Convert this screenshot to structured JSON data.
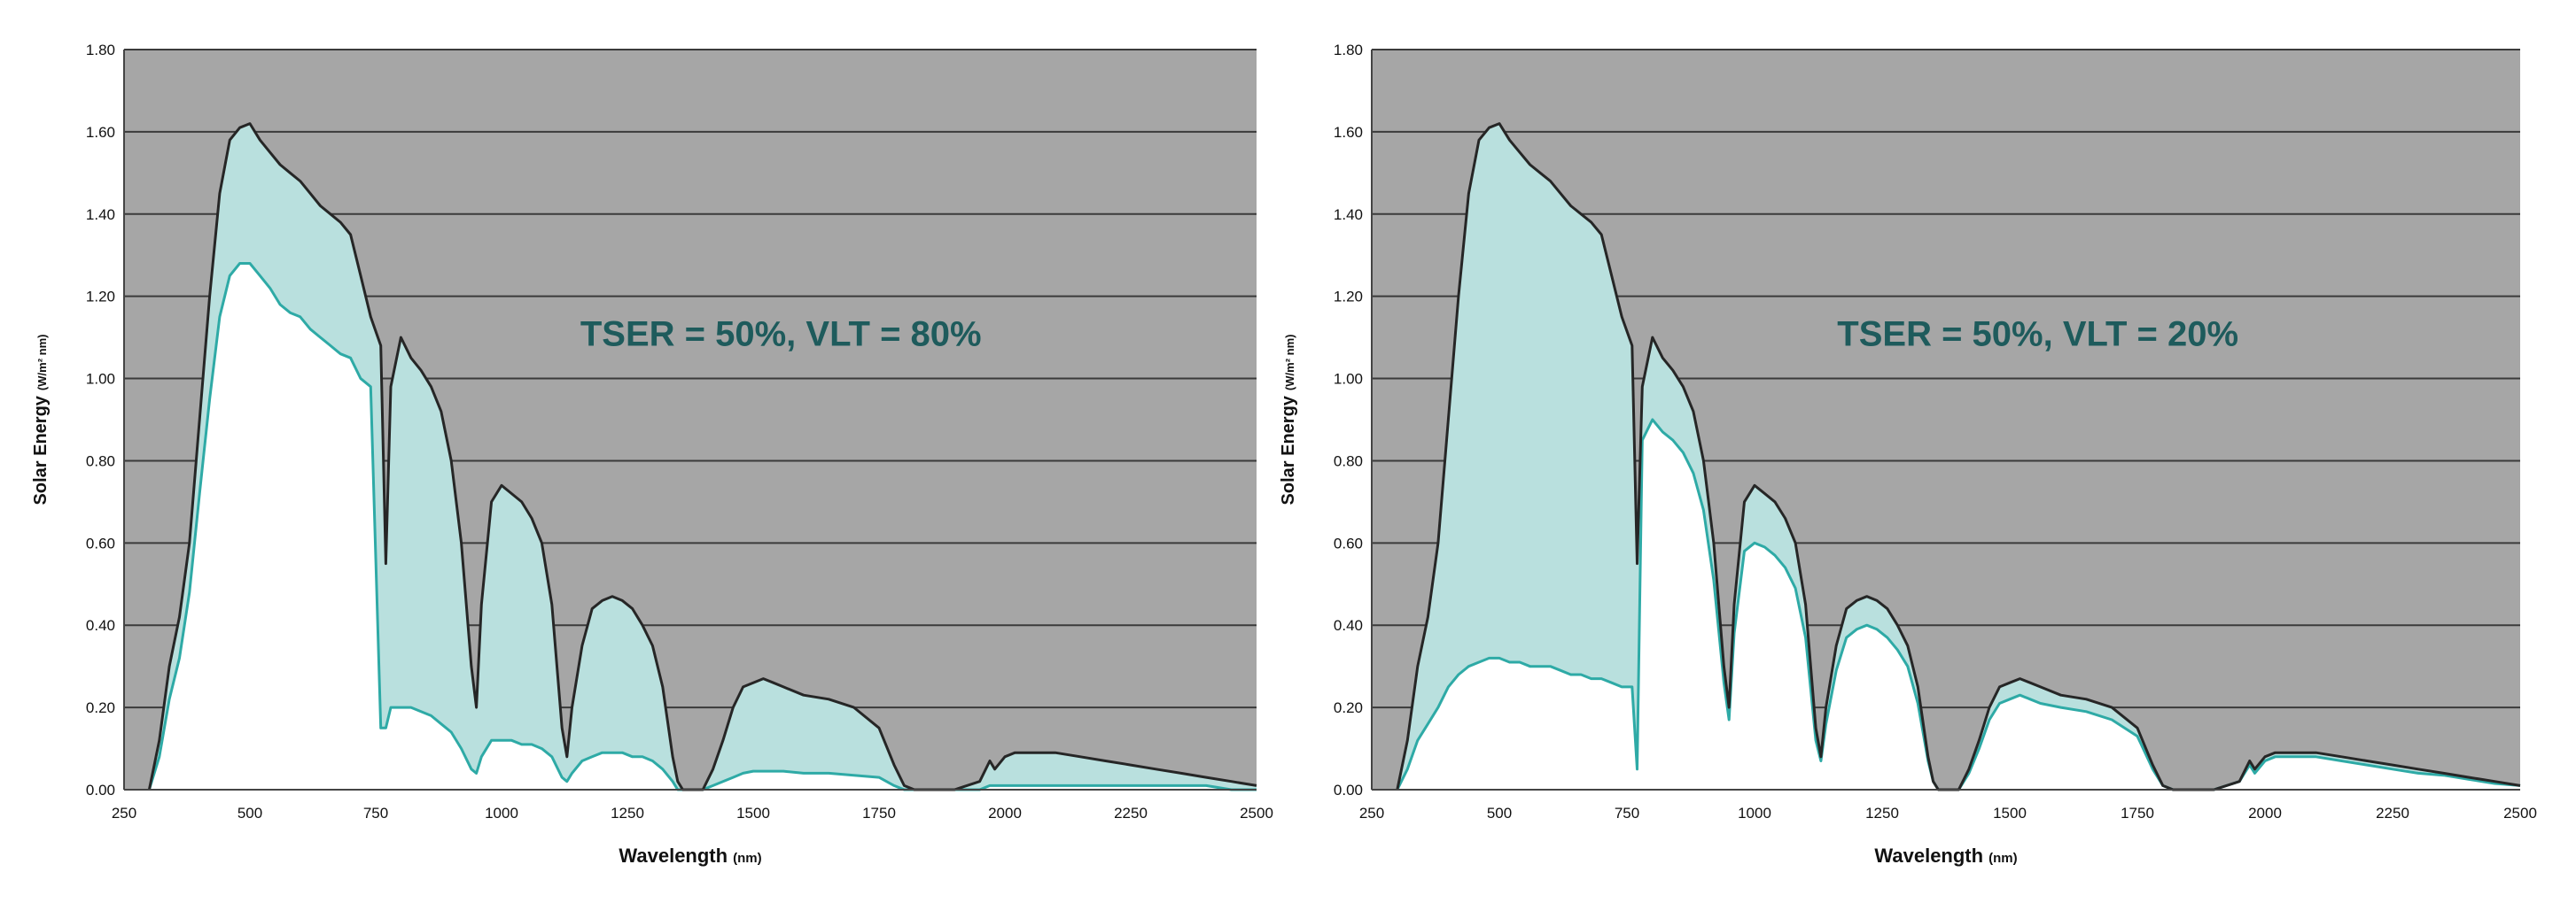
{
  "chart_data": [
    {
      "type": "area",
      "annotation": "TSER = 50%, VLT = 80%",
      "xlabel": "Wavelength",
      "xlabel_unit": "(nm)",
      "ylabel": "Solar Energy",
      "ylabel_unit": "(W/m² nm)",
      "xlim": [
        250,
        2500
      ],
      "ylim": [
        0,
        1.8
      ],
      "x_ticks": [
        "250",
        "500",
        "750",
        "1000",
        "1250",
        "1500",
        "1750",
        "2000",
        "2250",
        "2500"
      ],
      "y_ticks": [
        "0.00",
        "0.20",
        "0.40",
        "0.60",
        "0.80",
        "1.00",
        "1.20",
        "1.40",
        "1.60",
        "1.80"
      ],
      "grid": true,
      "colors": {
        "plot_bg": "#a6a6a6",
        "absorbed_fill": "#b9e0de",
        "transmitted_fill": "#ffffff",
        "incident_line": "#262626",
        "transmitted_line": "#2eaaa6",
        "annotation": "#1e5b5c"
      },
      "series": [
        {
          "role": "incident",
          "x": [
            300,
            320,
            340,
            360,
            380,
            400,
            420,
            440,
            460,
            480,
            500,
            520,
            540,
            560,
            580,
            600,
            620,
            640,
            660,
            680,
            700,
            720,
            740,
            760,
            770,
            780,
            800,
            820,
            840,
            860,
            880,
            900,
            920,
            940,
            950,
            960,
            980,
            1000,
            1020,
            1040,
            1060,
            1080,
            1100,
            1120,
            1130,
            1140,
            1160,
            1180,
            1200,
            1220,
            1240,
            1260,
            1280,
            1300,
            1320,
            1340,
            1350,
            1360,
            1400,
            1420,
            1440,
            1460,
            1480,
            1500,
            1520,
            1540,
            1560,
            1600,
            1650,
            1700,
            1750,
            1780,
            1800,
            1820,
            1850,
            1900,
            1950,
            1970,
            1980,
            2000,
            2020,
            2040,
            2060,
            2080,
            2100,
            2150,
            2200,
            2250,
            2300,
            2350,
            2400,
            2450,
            2500
          ],
          "y": [
            0.0,
            0.12,
            0.3,
            0.42,
            0.6,
            0.9,
            1.2,
            1.45,
            1.58,
            1.61,
            1.62,
            1.58,
            1.55,
            1.52,
            1.5,
            1.48,
            1.45,
            1.42,
            1.4,
            1.38,
            1.35,
            1.25,
            1.15,
            1.08,
            0.55,
            0.98,
            1.1,
            1.05,
            1.02,
            0.98,
            0.92,
            0.8,
            0.6,
            0.3,
            0.2,
            0.45,
            0.7,
            0.74,
            0.72,
            0.7,
            0.66,
            0.6,
            0.45,
            0.15,
            0.08,
            0.2,
            0.35,
            0.44,
            0.46,
            0.47,
            0.46,
            0.44,
            0.4,
            0.35,
            0.25,
            0.08,
            0.02,
            0.0,
            0.0,
            0.05,
            0.12,
            0.2,
            0.25,
            0.26,
            0.27,
            0.26,
            0.25,
            0.23,
            0.22,
            0.2,
            0.15,
            0.06,
            0.01,
            0.0,
            0.0,
            0.0,
            0.02,
            0.07,
            0.05,
            0.08,
            0.09,
            0.09,
            0.09,
            0.09,
            0.09,
            0.08,
            0.07,
            0.06,
            0.05,
            0.04,
            0.03,
            0.02,
            0.01
          ]
        },
        {
          "role": "transmitted",
          "x": [
            300,
            320,
            340,
            360,
            380,
            400,
            420,
            440,
            460,
            480,
            500,
            520,
            540,
            560,
            580,
            600,
            620,
            640,
            660,
            680,
            700,
            720,
            740,
            760,
            770,
            780,
            800,
            820,
            840,
            860,
            880,
            900,
            920,
            940,
            950,
            960,
            980,
            1000,
            1020,
            1040,
            1060,
            1080,
            1100,
            1120,
            1130,
            1140,
            1160,
            1180,
            1200,
            1220,
            1240,
            1260,
            1280,
            1300,
            1320,
            1340,
            1350,
            1360,
            1400,
            1420,
            1440,
            1460,
            1480,
            1500,
            1520,
            1540,
            1560,
            1600,
            1650,
            1700,
            1750,
            1780,
            1800,
            1820,
            1850,
            1900,
            1950,
            1970,
            1980,
            2000,
            2020,
            2040,
            2060,
            2080,
            2100,
            2150,
            2200,
            2250,
            2300,
            2350,
            2400,
            2450,
            2500
          ],
          "y": [
            0.0,
            0.08,
            0.22,
            0.32,
            0.48,
            0.72,
            0.95,
            1.15,
            1.25,
            1.28,
            1.28,
            1.25,
            1.22,
            1.18,
            1.16,
            1.15,
            1.12,
            1.1,
            1.08,
            1.06,
            1.05,
            1.0,
            0.98,
            0.15,
            0.15,
            0.2,
            0.2,
            0.2,
            0.19,
            0.18,
            0.16,
            0.14,
            0.1,
            0.05,
            0.04,
            0.08,
            0.12,
            0.12,
            0.12,
            0.11,
            0.11,
            0.1,
            0.08,
            0.03,
            0.02,
            0.04,
            0.07,
            0.08,
            0.09,
            0.09,
            0.09,
            0.08,
            0.08,
            0.07,
            0.05,
            0.02,
            0.0,
            0.0,
            0.0,
            0.01,
            0.02,
            0.03,
            0.04,
            0.045,
            0.045,
            0.045,
            0.045,
            0.04,
            0.04,
            0.035,
            0.03,
            0.01,
            0.0,
            0.0,
            0.0,
            0.0,
            0.0,
            0.01,
            0.01,
            0.01,
            0.01,
            0.01,
            0.01,
            0.01,
            0.01,
            0.01,
            0.01,
            0.01,
            0.01,
            0.01,
            0.01,
            0.0,
            0.0
          ]
        }
      ]
    },
    {
      "type": "area",
      "annotation": "TSER = 50%, VLT = 20%",
      "xlabel": "Wavelength",
      "xlabel_unit": "(nm)",
      "ylabel": "Solar Energy",
      "ylabel_unit": "(W/m² nm)",
      "xlim": [
        250,
        2500
      ],
      "ylim": [
        0,
        1.8
      ],
      "x_ticks": [
        "250",
        "500",
        "750",
        "1000",
        "1250",
        "1500",
        "1750",
        "2000",
        "2250",
        "2500"
      ],
      "y_ticks": [
        "0.00",
        "0.20",
        "0.40",
        "0.60",
        "0.80",
        "1.00",
        "1.20",
        "1.40",
        "1.60",
        "1.80"
      ],
      "grid": true,
      "colors": {
        "plot_bg": "#a6a6a6",
        "absorbed_fill": "#b9e0de",
        "transmitted_fill": "#ffffff",
        "incident_line": "#262626",
        "transmitted_line": "#2eaaa6",
        "annotation": "#1e5b5c"
      },
      "series": [
        {
          "role": "incident",
          "x": [
            300,
            320,
            340,
            360,
            380,
            400,
            420,
            440,
            460,
            480,
            500,
            520,
            540,
            560,
            580,
            600,
            620,
            640,
            660,
            680,
            700,
            720,
            740,
            760,
            770,
            780,
            800,
            820,
            840,
            860,
            880,
            900,
            920,
            940,
            950,
            960,
            980,
            1000,
            1020,
            1040,
            1060,
            1080,
            1100,
            1120,
            1130,
            1140,
            1160,
            1180,
            1200,
            1220,
            1240,
            1260,
            1280,
            1300,
            1320,
            1340,
            1350,
            1360,
            1400,
            1420,
            1440,
            1460,
            1480,
            1500,
            1520,
            1540,
            1560,
            1600,
            1650,
            1700,
            1750,
            1780,
            1800,
            1820,
            1850,
            1900,
            1950,
            1970,
            1980,
            2000,
            2020,
            2040,
            2060,
            2080,
            2100,
            2150,
            2200,
            2250,
            2300,
            2350,
            2400,
            2450,
            2500
          ],
          "y": [
            0.0,
            0.12,
            0.3,
            0.42,
            0.6,
            0.9,
            1.2,
            1.45,
            1.58,
            1.61,
            1.62,
            1.58,
            1.55,
            1.52,
            1.5,
            1.48,
            1.45,
            1.42,
            1.4,
            1.38,
            1.35,
            1.25,
            1.15,
            1.08,
            0.55,
            0.98,
            1.1,
            1.05,
            1.02,
            0.98,
            0.92,
            0.8,
            0.6,
            0.3,
            0.2,
            0.45,
            0.7,
            0.74,
            0.72,
            0.7,
            0.66,
            0.6,
            0.45,
            0.15,
            0.08,
            0.2,
            0.35,
            0.44,
            0.46,
            0.47,
            0.46,
            0.44,
            0.4,
            0.35,
            0.25,
            0.08,
            0.02,
            0.0,
            0.0,
            0.05,
            0.12,
            0.2,
            0.25,
            0.26,
            0.27,
            0.26,
            0.25,
            0.23,
            0.22,
            0.2,
            0.15,
            0.06,
            0.01,
            0.0,
            0.0,
            0.0,
            0.02,
            0.07,
            0.05,
            0.08,
            0.09,
            0.09,
            0.09,
            0.09,
            0.09,
            0.08,
            0.07,
            0.06,
            0.05,
            0.04,
            0.03,
            0.02,
            0.01
          ]
        },
        {
          "role": "transmitted",
          "x": [
            300,
            320,
            340,
            360,
            380,
            400,
            420,
            440,
            460,
            480,
            500,
            520,
            540,
            560,
            580,
            600,
            620,
            640,
            660,
            680,
            700,
            720,
            740,
            760,
            770,
            780,
            800,
            820,
            840,
            860,
            880,
            900,
            920,
            940,
            950,
            960,
            980,
            1000,
            1020,
            1040,
            1060,
            1080,
            1100,
            1120,
            1130,
            1140,
            1160,
            1180,
            1200,
            1220,
            1240,
            1260,
            1280,
            1300,
            1320,
            1340,
            1350,
            1360,
            1400,
            1420,
            1440,
            1460,
            1480,
            1500,
            1520,
            1540,
            1560,
            1600,
            1650,
            1700,
            1750,
            1780,
            1800,
            1820,
            1850,
            1900,
            1950,
            1970,
            1980,
            2000,
            2020,
            2040,
            2060,
            2080,
            2100,
            2150,
            2200,
            2250,
            2300,
            2350,
            2400,
            2450,
            2500
          ],
          "y": [
            0.0,
            0.05,
            0.12,
            0.16,
            0.2,
            0.25,
            0.28,
            0.3,
            0.31,
            0.32,
            0.32,
            0.31,
            0.31,
            0.3,
            0.3,
            0.3,
            0.29,
            0.28,
            0.28,
            0.27,
            0.27,
            0.26,
            0.25,
            0.25,
            0.05,
            0.85,
            0.9,
            0.87,
            0.85,
            0.82,
            0.77,
            0.68,
            0.51,
            0.26,
            0.17,
            0.38,
            0.58,
            0.6,
            0.59,
            0.57,
            0.54,
            0.49,
            0.37,
            0.12,
            0.07,
            0.16,
            0.29,
            0.37,
            0.39,
            0.4,
            0.39,
            0.37,
            0.34,
            0.3,
            0.21,
            0.07,
            0.02,
            0.0,
            0.0,
            0.04,
            0.1,
            0.17,
            0.21,
            0.22,
            0.23,
            0.22,
            0.21,
            0.2,
            0.19,
            0.17,
            0.13,
            0.05,
            0.01,
            0.0,
            0.0,
            0.0,
            0.02,
            0.06,
            0.04,
            0.07,
            0.08,
            0.08,
            0.08,
            0.08,
            0.08,
            0.07,
            0.06,
            0.05,
            0.04,
            0.035,
            0.025,
            0.015,
            0.01
          ]
        }
      ]
    }
  ]
}
